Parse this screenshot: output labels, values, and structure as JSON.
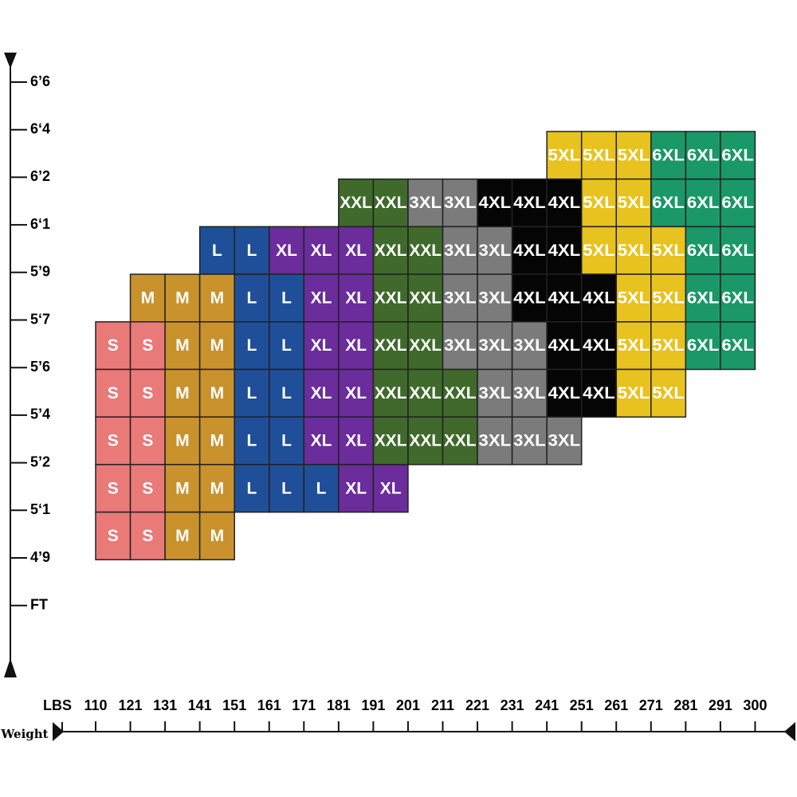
{
  "y_axis": {
    "labels": [
      "6’6",
      "6‘4",
      "6’2",
      "6‘1",
      "5’9",
      "5‘7",
      "5’6",
      "5’4",
      "5’2",
      "5‘1",
      "4’9",
      "FT"
    ]
  },
  "x_axis": {
    "title": "Weight",
    "unit": "LBS",
    "labels": [
      "110",
      "121",
      "131",
      "141",
      "151",
      "161",
      "171",
      "181",
      "191",
      "201",
      "211",
      "221",
      "231",
      "241",
      "251",
      "261",
      "271",
      "281",
      "291",
      "300"
    ]
  },
  "colors": {
    "S": "#e97a78",
    "M": "#c9922c",
    "L": "#1f4f98",
    "XL": "#6b2c9c",
    "XXL": "#3f6a2b",
    "3XL": "#7b7b7b",
    "4XL": "#050505",
    "5XL": "#e8c21e",
    "6XL": "#1a9868"
  },
  "grid": {
    "rows": [
      [
        null,
        null,
        null,
        null,
        null,
        null,
        null,
        null,
        null,
        null,
        null,
        null,
        null,
        "5XL",
        "5XL",
        "5XL",
        "6XL",
        "6XL",
        "6XL"
      ],
      [
        null,
        null,
        null,
        null,
        null,
        null,
        null,
        "XXL",
        "XXL",
        "3XL",
        "3XL",
        "4XL",
        "4XL",
        "4XL",
        "5XL",
        "5XL",
        "6XL",
        "6XL",
        "6XL"
      ],
      [
        null,
        null,
        null,
        "L",
        "L",
        "XL",
        "XL",
        "XL",
        "XXL",
        "XXL",
        "3XL",
        "3XL",
        "4XL",
        "4XL",
        "5XL",
        "5XL",
        "5XL",
        "6XL",
        "6XL"
      ],
      [
        null,
        "M",
        "M",
        "M",
        "L",
        "L",
        "XL",
        "XL",
        "XXL",
        "XXL",
        "3XL",
        "3XL",
        "4XL",
        "4XL",
        "4XL",
        "5XL",
        "5XL",
        "6XL",
        "6XL"
      ],
      [
        "S",
        "S",
        "M",
        "M",
        "L",
        "L",
        "XL",
        "XL",
        "XXL",
        "XXL",
        "3XL",
        "3XL",
        "3XL",
        "4XL",
        "4XL",
        "5XL",
        "5XL",
        "6XL",
        "6XL"
      ],
      [
        "S",
        "S",
        "M",
        "M",
        "L",
        "L",
        "XL",
        "XL",
        "XXL",
        "XXL",
        "XXL",
        "3XL",
        "3XL",
        "4XL",
        "4XL",
        "5XL",
        "5XL",
        null,
        null
      ],
      [
        "S",
        "S",
        "M",
        "M",
        "L",
        "L",
        "XL",
        "XL",
        "XXL",
        "XXL",
        "XXL",
        "3XL",
        "3XL",
        "3XL",
        null,
        null,
        null,
        null,
        null
      ],
      [
        "S",
        "S",
        "M",
        "M",
        "L",
        "L",
        "L",
        "XL",
        "XL",
        null,
        null,
        null,
        null,
        null,
        null,
        null,
        null,
        null,
        null
      ],
      [
        "S",
        "S",
        "M",
        "M",
        null,
        null,
        null,
        null,
        null,
        null,
        null,
        null,
        null,
        null,
        null,
        null,
        null,
        null,
        null
      ]
    ]
  }
}
